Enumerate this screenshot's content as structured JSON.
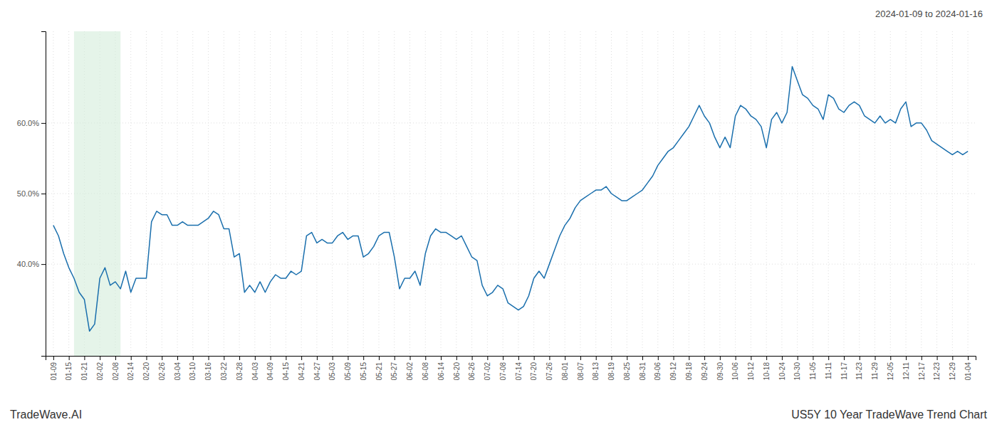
{
  "chart_data": {
    "type": "line",
    "title": "US5Y 10 Year TradeWave Trend Chart",
    "subtitle": "2024-01-09 to 2024-01-16",
    "annotations": [
      "TradeWave.AI"
    ],
    "color": "#1a6fad",
    "grid": true,
    "highlight": {
      "start": 4,
      "end": 13,
      "color": "#d4edda"
    },
    "ylim": [
      0.27,
      0.73
    ],
    "yticks": [
      {
        "value": 0.4,
        "label": "40.0%"
      },
      {
        "value": 0.5,
        "label": "50.0%"
      },
      {
        "value": 0.6,
        "label": "60.0%"
      }
    ],
    "categories": [
      "01-09",
      null,
      null,
      "01-15",
      null,
      null,
      "01-21",
      null,
      null,
      "02-02",
      null,
      null,
      "02-08",
      null,
      null,
      "02-14",
      null,
      null,
      "02-20",
      null,
      null,
      "02-26",
      null,
      null,
      "03-04",
      null,
      null,
      "03-10",
      null,
      null,
      "03-16",
      null,
      null,
      "03-22",
      null,
      null,
      "03-28",
      null,
      null,
      "04-03",
      null,
      null,
      "04-09",
      null,
      null,
      "04-15",
      null,
      null,
      "04-21",
      null,
      null,
      "04-27",
      null,
      null,
      "05-03",
      null,
      null,
      "05-09",
      null,
      null,
      "05-15",
      null,
      null,
      "05-21",
      null,
      null,
      "05-27",
      null,
      null,
      "06-02",
      null,
      null,
      "06-08",
      null,
      null,
      "06-14",
      null,
      null,
      "06-20",
      null,
      null,
      "06-26",
      null,
      null,
      "07-02",
      null,
      null,
      "07-08",
      null,
      null,
      "07-14",
      null,
      null,
      "07-20",
      null,
      null,
      "07-26",
      null,
      null,
      "08-01",
      null,
      null,
      "08-07",
      null,
      null,
      "08-13",
      null,
      null,
      "08-19",
      null,
      null,
      "08-25",
      null,
      null,
      "08-31",
      null,
      null,
      "09-06",
      null,
      null,
      "09-12",
      null,
      null,
      "09-18",
      null,
      null,
      "09-24",
      null,
      null,
      "09-30",
      null,
      null,
      "10-06",
      null,
      null,
      "10-12",
      null,
      null,
      "10-18",
      null,
      null,
      "10-24",
      null,
      null,
      "10-30",
      null,
      null,
      "11-05",
      null,
      null,
      "11-11",
      null,
      null,
      "11-17",
      null,
      null,
      "11-23",
      null,
      null,
      "11-29",
      null,
      null,
      "12-05",
      null,
      null,
      "12-11",
      null,
      null,
      "12-17",
      null,
      null,
      "12-23",
      null,
      null,
      "12-29",
      null,
      null,
      "01-04"
    ],
    "values": [
      0.455,
      0.44,
      0.415,
      0.395,
      0.38,
      0.36,
      0.35,
      0.305,
      0.315,
      0.38,
      0.395,
      0.37,
      0.375,
      0.365,
      0.39,
      0.36,
      0.38,
      0.38,
      0.38,
      0.46,
      0.475,
      0.47,
      0.47,
      0.455,
      0.455,
      0.46,
      0.455,
      0.455,
      0.455,
      0.46,
      0.465,
      0.475,
      0.47,
      0.45,
      0.45,
      0.41,
      0.415,
      0.36,
      0.37,
      0.36,
      0.375,
      0.36,
      0.375,
      0.385,
      0.38,
      0.38,
      0.39,
      0.385,
      0.39,
      0.44,
      0.445,
      0.43,
      0.435,
      0.43,
      0.43,
      0.44,
      0.445,
      0.435,
      0.44,
      0.44,
      0.41,
      0.415,
      0.425,
      0.44,
      0.445,
      0.445,
      0.41,
      0.365,
      0.38,
      0.38,
      0.39,
      0.37,
      0.415,
      0.44,
      0.45,
      0.445,
      0.445,
      0.44,
      0.435,
      0.44,
      0.425,
      0.41,
      0.405,
      0.37,
      0.355,
      0.36,
      0.37,
      0.365,
      0.345,
      0.34,
      0.335,
      0.34,
      0.355,
      0.38,
      0.39,
      0.38,
      0.4,
      0.42,
      0.44,
      0.455,
      0.465,
      0.48,
      0.49,
      0.495,
      0.5,
      0.505,
      0.505,
      0.51,
      0.5,
      0.495,
      0.49,
      0.49,
      0.495,
      0.5,
      0.505,
      0.515,
      0.525,
      0.54,
      0.55,
      0.56,
      0.565,
      0.575,
      0.585,
      0.595,
      0.61,
      0.625,
      0.61,
      0.6,
      0.58,
      0.565,
      0.58,
      0.565,
      0.61,
      0.625,
      0.62,
      0.61,
      0.605,
      0.595,
      0.565,
      0.605,
      0.615,
      0.6,
      0.615,
      0.68,
      0.66,
      0.64,
      0.635,
      0.625,
      0.62,
      0.605,
      0.64,
      0.635,
      0.62,
      0.615,
      0.625,
      0.63,
      0.625,
      0.61,
      0.605,
      0.6,
      0.61,
      0.6,
      0.605,
      0.6,
      0.62,
      0.63,
      0.595,
      0.6,
      0.6,
      0.59,
      0.575,
      0.57,
      0.565,
      0.56,
      0.555,
      0.56,
      0.555,
      0.56
    ]
  }
}
